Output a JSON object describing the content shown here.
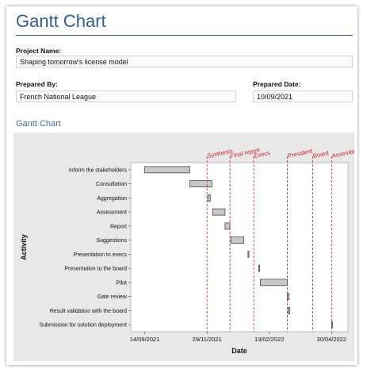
{
  "page": {
    "title": "Gantt Chart",
    "project_name_label": "Project Name:",
    "project_name_value": "Shaping tomorrow's license model",
    "prepared_by_label": "Prepared By:",
    "prepared_by_value": "French National League",
    "prepared_date_label": "Prepared Date:",
    "prepared_date_value": "10/09/2021",
    "section_title": "Gantt Chart"
  },
  "colors": {
    "bar_fill": "#c8c8c8",
    "bar_stroke": "#333333",
    "milestone_line": "#cc2222",
    "title": "#2e5d8e"
  },
  "chart_data": {
    "type": "bar",
    "orientation": "horizontal-gantt",
    "xlabel": "Date",
    "ylabel": "Activity",
    "x_range": [
      "2021-08-28",
      "2022-05-20"
    ],
    "x_ticks": [
      {
        "date": "2021-09-14",
        "label": "14/09/2021"
      },
      {
        "date": "2021-11-29",
        "label": "29/11/2021"
      },
      {
        "date": "2022-02-13",
        "label": "13/02/2022"
      },
      {
        "date": "2022-04-30",
        "label": "30/04/2022"
      }
    ],
    "grid": false,
    "tasks": [
      {
        "name": "Inform the stakeholders",
        "start": "2021-09-14",
        "end": "2021-11-08"
      },
      {
        "name": "Consultation",
        "start": "2021-11-08",
        "end": "2021-12-05"
      },
      {
        "name": "Aggregation",
        "start": "2021-11-30",
        "end": "2021-12-03"
      },
      {
        "name": "Assessment",
        "start": "2021-12-06",
        "end": "2021-12-21"
      },
      {
        "name": "Report",
        "start": "2021-12-21",
        "end": "2021-12-27"
      },
      {
        "name": "Suggestions",
        "start": "2021-12-28",
        "end": "2022-01-13"
      },
      {
        "name": "Presentation to execs",
        "start": "2022-01-18",
        "end": "2022-01-18"
      },
      {
        "name": "Presentation to the board",
        "start": "2022-01-31",
        "end": "2022-01-31"
      },
      {
        "name": "Pilot",
        "start": "2022-02-02",
        "end": "2022-03-07"
      },
      {
        "name": "Gate review",
        "start": "2022-03-07",
        "end": "2022-03-09"
      },
      {
        "name": "Result validation with the board",
        "start": "2022-03-08",
        "end": "2022-03-10"
      },
      {
        "name": "Submission for solution deployment",
        "start": "2022-04-30",
        "end": "2022-05-01"
      }
    ],
    "milestones": [
      {
        "label": "Synthesis",
        "date": "2021-11-29"
      },
      {
        "label": "Final report",
        "date": "2021-12-27"
      },
      {
        "label": "Execs",
        "date": "2022-01-25"
      },
      {
        "label": "President",
        "date": "2022-03-07"
      },
      {
        "label": "Board",
        "date": "2022-04-07"
      },
      {
        "label": "Assembly",
        "date": "2022-04-30"
      }
    ]
  }
}
